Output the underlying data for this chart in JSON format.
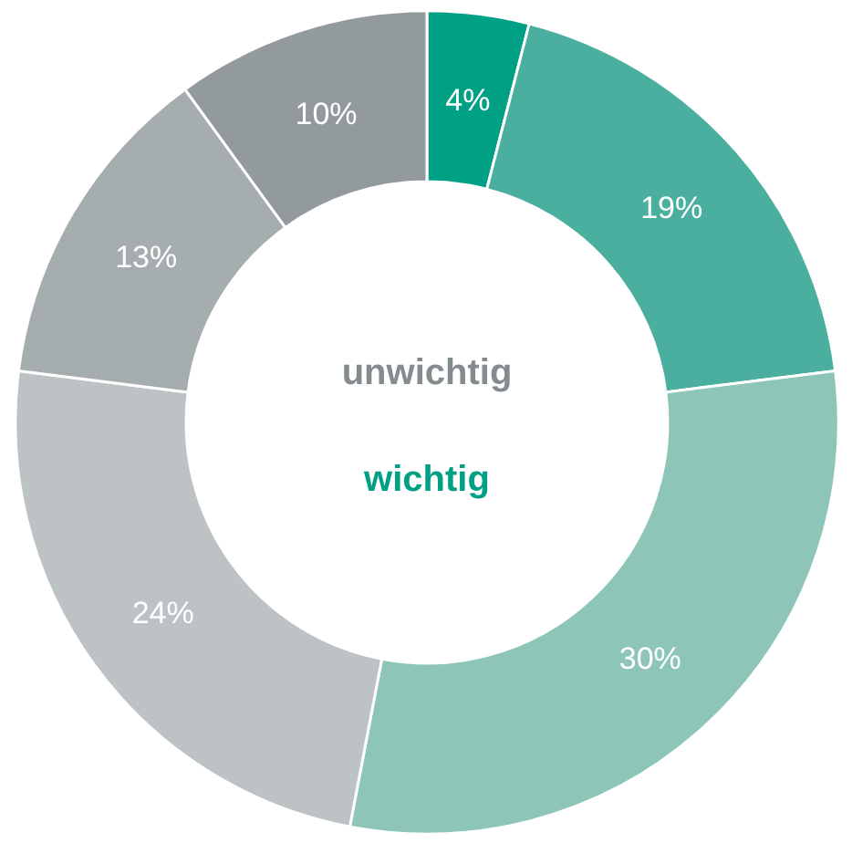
{
  "chart_data": {
    "type": "donut",
    "categories": [
      null,
      null,
      null,
      null,
      null,
      null
    ],
    "values": [
      4,
      19,
      30,
      24,
      13,
      10
    ],
    "value_labels": [
      "4%",
      "19%",
      "30%",
      "24%",
      "13%",
      "10%"
    ],
    "colors": [
      "#00a085",
      "#4aaf9e",
      "#8dc6b9",
      "#bdc2c5",
      "#a6adaf",
      "#939a9e"
    ],
    "annotations": [
      "unwichtig",
      "wichtig"
    ]
  }
}
